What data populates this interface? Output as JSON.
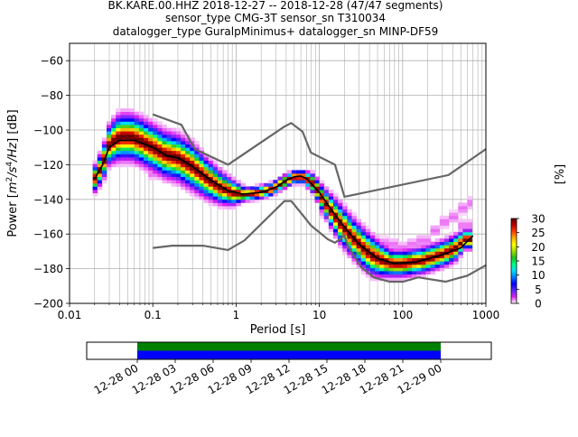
{
  "title_lines": [
    "BK.KARE.00.HHZ   2018-12-27 -- 2018-12-28  (47/47 segments)",
    "sensor_type CMG-3T sensor_sn T310034",
    "datalogger_type GuralpMinimus+ datalogger_sn MINP-DF59"
  ],
  "chart_data": [
    {
      "type": "heatmap",
      "title": "BK.KARE.00.HHZ   2018-12-27 -- 2018-12-28  (47/47 segments)",
      "xlabel": "Period [s]",
      "ylabel_parts": [
        "Power [",
        "m",
        "2",
        "/s",
        "4",
        "/Hz",
        "] [dB]"
      ],
      "x_scale": "log",
      "xlim": [
        0.01,
        1000
      ],
      "ylim": [
        -200,
        -50
      ],
      "grid": true,
      "x_ticks": [
        {
          "value": 0.01,
          "label": "0.01"
        },
        {
          "value": 0.1,
          "label": "0.1"
        },
        {
          "value": 1,
          "label": "1"
        },
        {
          "value": 10,
          "label": "10"
        },
        {
          "value": 100,
          "label": "100"
        },
        {
          "value": 1000,
          "label": "1000"
        }
      ],
      "y_ticks": [
        -60,
        -80,
        -100,
        -120,
        -140,
        -160,
        -180,
        -200
      ],
      "colorbar": {
        "label": "[%]",
        "min": 0,
        "max": 30,
        "ticks": [
          0,
          5,
          10,
          15,
          20,
          25,
          30
        ],
        "colors": [
          "#ffffff",
          "#e020f0",
          "#5a28ff",
          "#0000ff",
          "#0080ff",
          "#00e0ff",
          "#00ff80",
          "#20c020",
          "#a0e000",
          "#ffff00",
          "#ffb000",
          "#ff4000",
          "#c00000",
          "#600000"
        ]
      },
      "noise_models": [
        {
          "name": "high",
          "color": "#666666",
          "points": [
            [
              0.1,
              -91
            ],
            [
              0.22,
              -97
            ],
            [
              0.32,
              -111
            ],
            [
              0.8,
              -120
            ],
            [
              3.8,
              -98
            ],
            [
              4.6,
              -96
            ],
            [
              6.3,
              -101
            ],
            [
              7.9,
              -113
            ],
            [
              15.4,
              -120
            ],
            [
              20,
              -138.5
            ],
            [
              354.8,
              -126
            ],
            [
              1000,
              -111
            ]
          ]
        },
        {
          "name": "low",
          "color": "#666666",
          "points": [
            [
              0.1,
              -168
            ],
            [
              0.17,
              -166.7
            ],
            [
              0.4,
              -166.7
            ],
            [
              0.8,
              -169.2
            ],
            [
              1.26,
              -163.7
            ],
            [
              3.8,
              -141
            ],
            [
              4.6,
              -141
            ],
            [
              6.3,
              -149
            ],
            [
              7.9,
              -155
            ],
            [
              12.6,
              -163
            ],
            [
              15.4,
              -165
            ],
            [
              20,
              -161
            ],
            [
              21.9,
              -166.7
            ],
            [
              31.6,
              -179
            ],
            [
              45,
              -185
            ],
            [
              70,
              -187.5
            ],
            [
              101,
              -187.5
            ],
            [
              154,
              -185
            ],
            [
              328,
              -187.5
            ],
            [
              600,
              -184
            ],
            [
              1000,
              -178
            ]
          ]
        }
      ],
      "mean_curve": {
        "color": "#000000",
        "points": [
          [
            0.02,
            -128
          ],
          [
            0.025,
            -120
          ],
          [
            0.03,
            -110
          ],
          [
            0.04,
            -106
          ],
          [
            0.06,
            -106
          ],
          [
            0.1,
            -110
          ],
          [
            0.15,
            -115
          ],
          [
            0.2,
            -116
          ],
          [
            0.3,
            -121
          ],
          [
            0.5,
            -129
          ],
          [
            0.8,
            -135
          ],
          [
            1.2,
            -137
          ],
          [
            2,
            -136
          ],
          [
            3,
            -133
          ],
          [
            4,
            -129
          ],
          [
            5,
            -127
          ],
          [
            6,
            -126.5
          ],
          [
            7,
            -128
          ],
          [
            10,
            -136
          ],
          [
            14,
            -146
          ],
          [
            20,
            -156
          ],
          [
            30,
            -166
          ],
          [
            50,
            -174
          ],
          [
            80,
            -177
          ],
          [
            150,
            -176
          ],
          [
            300,
            -172
          ],
          [
            500,
            -168
          ],
          [
            700,
            -161
          ]
        ]
      },
      "psd_distribution": [
        {
          "period": 0.02,
          "mode": -128,
          "spread": 4,
          "extra": [
            [
              -126,
              3
            ]
          ]
        },
        {
          "period": 0.025,
          "mode": -120,
          "spread": 5,
          "extra": []
        },
        {
          "period": 0.03,
          "mode": -108,
          "spread": 6,
          "extra": [
            [
              -100,
              3
            ]
          ]
        },
        {
          "period": 0.04,
          "mode": -104,
          "spread": 7,
          "extra": [
            [
              -97,
              3
            ]
          ]
        },
        {
          "period": 0.055,
          "mode": -104,
          "spread": 7,
          "extra": [
            [
              -97,
              3
            ]
          ]
        },
        {
          "period": 0.07,
          "mode": -106,
          "spread": 7,
          "extra": [
            [
              -98,
              3
            ]
          ]
        },
        {
          "period": 0.1,
          "mode": -110,
          "spread": 7,
          "extra": [
            [
              -102,
              3
            ],
            [
              -125,
              3
            ]
          ]
        },
        {
          "period": 0.14,
          "mode": -114,
          "spread": 7,
          "extra": [
            [
              -105,
              3
            ]
          ]
        },
        {
          "period": 0.2,
          "mode": -116,
          "spread": 7,
          "extra": [
            [
              -127,
              3
            ]
          ]
        },
        {
          "period": 0.3,
          "mode": -121,
          "spread": 7,
          "extra": [
            [
              -130,
              3
            ]
          ]
        },
        {
          "period": 0.45,
          "mode": -128,
          "spread": 6,
          "extra": []
        },
        {
          "period": 0.65,
          "mode": -133,
          "spread": 5,
          "extra": []
        },
        {
          "period": 0.9,
          "mode": -136,
          "spread": 4,
          "extra": []
        },
        {
          "period": 1.3,
          "mode": -137,
          "spread": 2,
          "extra": []
        },
        {
          "period": 1.9,
          "mode": -136,
          "spread": 2,
          "extra": []
        },
        {
          "period": 2.7,
          "mode": -134,
          "spread": 2,
          "extra": []
        },
        {
          "period": 3.7,
          "mode": -130,
          "spread": 2,
          "extra": []
        },
        {
          "period": 5,
          "mode": -127,
          "spread": 2,
          "extra": []
        },
        {
          "period": 6.5,
          "mode": -127,
          "spread": 2,
          "extra": []
        },
        {
          "period": 8.5,
          "mode": -131,
          "spread": 3,
          "extra": []
        },
        {
          "period": 11,
          "mode": -140,
          "spread": 4,
          "extra": [
            [
              -147,
              3
            ]
          ]
        },
        {
          "period": 14,
          "mode": -147,
          "spread": 5,
          "extra": [
            [
              -152,
              3
            ]
          ]
        },
        {
          "period": 18,
          "mode": -154,
          "spread": 6,
          "extra": [
            [
              -160,
              3
            ]
          ]
        },
        {
          "period": 24,
          "mode": -161,
          "spread": 6,
          "extra": [
            [
              -152,
              3
            ]
          ]
        },
        {
          "period": 32,
          "mode": -167,
          "spread": 6,
          "extra": [
            [
              -158,
              3
            ]
          ]
        },
        {
          "period": 42,
          "mode": -172,
          "spread": 6,
          "extra": [
            [
              -162,
              3
            ]
          ]
        },
        {
          "period": 56,
          "mode": -175,
          "spread": 5,
          "extra": [
            [
              -165,
              3
            ]
          ]
        },
        {
          "period": 75,
          "mode": -177,
          "spread": 4,
          "extra": [
            [
              -166,
              3
            ]
          ]
        },
        {
          "period": 100,
          "mode": -177,
          "spread": 4,
          "extra": [
            [
              -168,
              3
            ]
          ]
        },
        {
          "period": 135,
          "mode": -176,
          "spread": 4,
          "extra": [
            [
              -166,
              3
            ]
          ]
        },
        {
          "period": 180,
          "mode": -175,
          "spread": 4,
          "extra": [
            [
              -164,
              3
            ]
          ]
        },
        {
          "period": 240,
          "mode": -173,
          "spread": 4,
          "extra": [
            [
              -158,
              3
            ]
          ]
        },
        {
          "period": 320,
          "mode": -171,
          "spread": 4,
          "extra": [
            [
              -153,
              3
            ]
          ]
        },
        {
          "period": 430,
          "mode": -168,
          "spread": 4,
          "extra": [
            [
              -150,
              3
            ]
          ]
        },
        {
          "period": 560,
          "mode": -163,
          "spread": 3,
          "extra": [
            [
              -145,
              3
            ],
            [
              -155,
              3
            ]
          ]
        },
        {
          "period": 700,
          "mode": -163,
          "spread": 3,
          "extra": [
            [
              -142,
              3
            ],
            [
              -155,
              3
            ]
          ]
        }
      ]
    },
    {
      "type": "bar",
      "title": "",
      "xlabel": "",
      "ylabel": "",
      "x_ticks": [
        "12-28 00",
        "12-28 03",
        "12-28 06",
        "12-28 09",
        "12-28 12",
        "12-28 15",
        "12-28 18",
        "12-28 21",
        "12-29 00"
      ],
      "x_range_hours": [
        -4,
        28
      ],
      "series": [
        {
          "color": "#0000ff",
          "hours": [
            0,
            24
          ]
        },
        {
          "color": "#008000",
          "hours": [
            0,
            24
          ]
        }
      ]
    }
  ]
}
